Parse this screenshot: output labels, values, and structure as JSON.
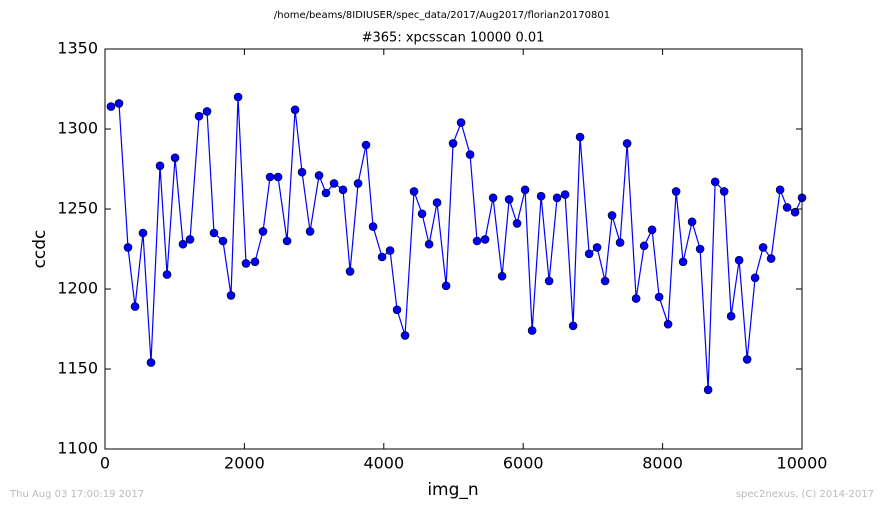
{
  "chart_data": {
    "type": "line",
    "supertitle": "/home/beams/8IDIUSER/spec_data/2017/Aug2017/florian20170801",
    "title": "#365: xpcsscan 10000 0.01",
    "xlabel": "img_n",
    "ylabel": "ccdc",
    "timestamp": "Thu Aug 03 17:00:19 2017",
    "credit": "spec2nexus, (C) 2014-2017",
    "xlim": [
      0,
      10000
    ],
    "xticks": [
      0,
      2000,
      4000,
      6000,
      8000,
      10000
    ],
    "ylim": [
      1100,
      1350
    ],
    "yticks": [
      1100,
      1150,
      1200,
      1250,
      1300,
      1350
    ],
    "x": [
      86,
      201,
      330,
      431,
      545,
      660,
      789,
      890,
      1005,
      1119,
      1220,
      1349,
      1464,
      1564,
      1693,
      1808,
      1909,
      2023,
      2152,
      2267,
      2368,
      2483,
      2612,
      2727,
      2827,
      2942,
      3071,
      3171,
      3286,
      3415,
      3516,
      3631,
      3745,
      3846,
      3975,
      4090,
      4190,
      4305,
      4434,
      4549,
      4650,
      4764,
      4894,
      4994,
      5109,
      5238,
      5338,
      5453,
      5568,
      5697,
      5798,
      5912,
      6027,
      6128,
      6257,
      6372,
      6486,
      6601,
      6716,
      6816,
      6946,
      7060,
      7175,
      7275,
      7390,
      7491,
      7620,
      7735,
      7849,
      7950,
      8079,
      8194,
      8294,
      8423,
      8538,
      8653,
      8754,
      8883,
      8983,
      9098,
      9213,
      9327,
      9442,
      9557,
      9686,
      9786,
      9901,
      10000
    ],
    "series": [
      {
        "name": "ccdc",
        "color": "#0000ff",
        "values": [
          1314,
          1316,
          1226,
          1189,
          1235,
          1154,
          1277,
          1209,
          1282,
          1228,
          1231,
          1308,
          1311,
          1235,
          1230,
          1196,
          1320,
          1216,
          1217,
          1236,
          1270,
          1270,
          1230,
          1312,
          1273,
          1236,
          1271,
          1260,
          1266,
          1262,
          1211,
          1266,
          1290,
          1239,
          1220,
          1224,
          1187,
          1171,
          1261,
          1247,
          1228,
          1254,
          1202,
          1291,
          1304,
          1284,
          1230,
          1231,
          1257,
          1208,
          1256,
          1241,
          1262,
          1174,
          1258,
          1205,
          1257,
          1259,
          1177,
          1295,
          1222,
          1226,
          1205,
          1246,
          1229,
          1291,
          1194,
          1227,
          1237,
          1195,
          1178,
          1261,
          1217,
          1242,
          1225,
          1137,
          1267,
          1261,
          1183,
          1218,
          1156,
          1207,
          1226,
          1219,
          1262,
          1251,
          1248,
          1257
        ]
      }
    ]
  }
}
